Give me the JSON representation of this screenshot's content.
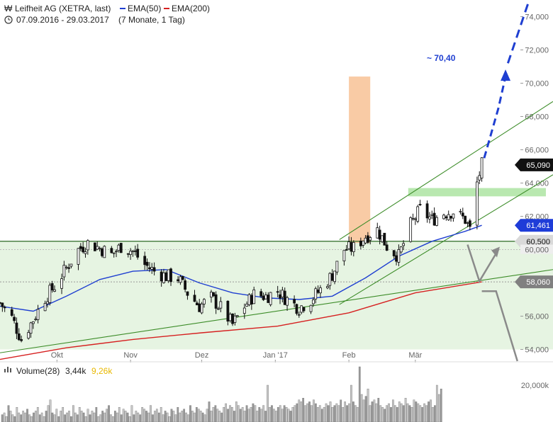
{
  "header": {
    "title": "Leifheit AG (XETRA, last)",
    "ema50_label": "EMA(50)",
    "ema200_label": "EMA(200)",
    "date_range": "07.09.2016 - 29.03.2017",
    "period": "(7 Monate, 1 Tag)"
  },
  "volume_panel": {
    "label": "Volume(28)",
    "value": "3,44k",
    "avg": "9,26k",
    "tick": "20,000k"
  },
  "annotations": {
    "target": "~ 70,40"
  },
  "badges": [
    {
      "label": "65,090",
      "value": 65.09,
      "color": "#111111"
    },
    {
      "label": "61,461",
      "value": 61.461,
      "color": "#1e3cd8"
    },
    {
      "label": "60,500",
      "value": 60.5,
      "color": "#d9d9d9"
    },
    {
      "label": "58,060",
      "value": 58.06,
      "color": "#808080"
    }
  ],
  "colors": {
    "ema50": "#1f3fd1",
    "ema200": "#d62020",
    "trend": "#3c8c28",
    "target": "#1f3fd1",
    "orange_box": "#f9cba5",
    "green_box": "#b9e8b0",
    "zone": "#e6f4e2"
  },
  "chart_data": {
    "type": "candlestick",
    "title": "Leifheit AG (XETRA, last)",
    "y_ticks": [
      "74,000",
      "72,000",
      "70,000",
      "68,000",
      "66,000",
      "64,000",
      "62,000",
      "60,000",
      "58,000",
      "56,000",
      "54,000"
    ],
    "y_tick_values": [
      74,
      72,
      70,
      68,
      66,
      64,
      62,
      60,
      58,
      56,
      54
    ],
    "x_ticks": [
      "Okt",
      "Nov",
      "Dez",
      "Jan '17",
      "Feb",
      "Mär"
    ],
    "x_tick_dates": [
      "2016-10-01",
      "2016-11-01",
      "2016-12-01",
      "2017-01-01",
      "2017-02-01",
      "2017-03-01"
    ],
    "ylim": [
      53.3,
      75.0
    ],
    "xlim": [
      "2016-09-07",
      "2017-04-28"
    ],
    "close_path": [
      [
        "2016-09-07",
        56.8
      ],
      [
        "2016-09-12",
        55.9
      ],
      [
        "2016-09-16",
        54.6
      ],
      [
        "2016-09-21",
        55.8
      ],
      [
        "2016-09-26",
        57.1
      ],
      [
        "2016-09-30",
        57.8
      ],
      [
        "2016-10-05",
        58.9
      ],
      [
        "2016-10-10",
        60.0
      ],
      [
        "2016-10-14",
        60.4
      ],
      [
        "2016-10-19",
        60.1
      ],
      [
        "2016-10-24",
        59.7
      ],
      [
        "2016-10-28",
        60.2
      ],
      [
        "2016-11-02",
        59.9
      ],
      [
        "2016-11-07",
        59.1
      ],
      [
        "2016-11-11",
        58.7
      ],
      [
        "2016-11-16",
        58.4
      ],
      [
        "2016-11-21",
        58.3
      ],
      [
        "2016-11-25",
        57.4
      ],
      [
        "2016-11-30",
        56.6
      ],
      [
        "2016-12-05",
        57.1
      ],
      [
        "2016-12-09",
        56.5
      ],
      [
        "2016-12-14",
        55.5
      ],
      [
        "2016-12-19",
        56.6
      ],
      [
        "2016-12-23",
        57.3
      ],
      [
        "2016-12-28",
        57.2
      ],
      [
        "2017-01-02",
        57.5
      ],
      [
        "2017-01-06",
        57.0
      ],
      [
        "2017-01-11",
        56.5
      ],
      [
        "2017-01-16",
        57.0
      ],
      [
        "2017-01-20",
        57.6
      ],
      [
        "2017-01-25",
        58.5
      ],
      [
        "2017-01-30",
        60.0
      ],
      [
        "2017-02-03",
        60.1
      ],
      [
        "2017-02-08",
        60.8
      ],
      [
        "2017-02-13",
        61.2
      ],
      [
        "2017-02-17",
        60.2
      ],
      [
        "2017-02-22",
        59.6
      ],
      [
        "2017-02-27",
        61.5
      ],
      [
        "2017-03-03",
        62.4
      ],
      [
        "2017-03-08",
        61.8
      ],
      [
        "2017-03-13",
        62.2
      ],
      [
        "2017-03-17",
        62.3
      ],
      [
        "2017-03-22",
        61.8
      ],
      [
        "2017-03-24",
        61.2
      ],
      [
        "2017-03-27",
        64.0
      ],
      [
        "2017-03-29",
        65.09
      ]
    ],
    "ema50": [
      [
        "2016-09-07",
        56.6
      ],
      [
        "2016-09-21",
        56.3
      ],
      [
        "2016-10-05",
        57.2
      ],
      [
        "2016-10-19",
        58.2
      ],
      [
        "2016-11-02",
        58.7
      ],
      [
        "2016-11-16",
        58.8
      ],
      [
        "2016-11-30",
        58.0
      ],
      [
        "2016-12-14",
        57.4
      ],
      [
        "2016-12-28",
        57.1
      ],
      [
        "2017-01-11",
        57.0
      ],
      [
        "2017-01-25",
        57.2
      ],
      [
        "2017-02-08",
        58.3
      ],
      [
        "2017-02-22",
        59.6
      ],
      [
        "2017-03-08",
        60.5
      ],
      [
        "2017-03-22",
        61.1
      ],
      [
        "2017-03-29",
        61.461
      ]
    ],
    "ema200": [
      [
        "2016-09-07",
        53.4
      ],
      [
        "2016-10-05",
        54.1
      ],
      [
        "2016-11-02",
        54.6
      ],
      [
        "2016-12-01",
        55.0
      ],
      [
        "2017-01-02",
        55.4
      ],
      [
        "2017-02-01",
        56.2
      ],
      [
        "2017-03-01",
        57.4
      ],
      [
        "2017-03-29",
        58.06
      ]
    ],
    "trendlines": [
      {
        "from": [
          "2016-09-07",
          53.8
        ],
        "to": [
          "2017-04-28",
          58.8
        ]
      },
      {
        "from": [
          "2017-01-28",
          56.7
        ],
        "to": [
          "2017-04-28",
          64.5
        ]
      },
      {
        "from": [
          "2017-01-28",
          60.6
        ],
        "to": [
          "2017-04-28",
          68.9
        ]
      }
    ],
    "horizontal_lines": [
      60.5,
      60.0,
      58.06
    ],
    "zone_y": [
      54.0,
      60.5
    ],
    "orange_box": {
      "x": [
        "2017-02-01",
        "2017-02-10"
      ],
      "y": [
        60.4,
        70.4
      ]
    },
    "green_box": {
      "x": [
        "2017-02-26",
        "2017-04-25"
      ],
      "y": [
        63.2,
        63.7
      ]
    },
    "target_path": [
      [
        "2017-03-30",
        65.5
      ],
      [
        "2017-04-05",
        68.5
      ],
      [
        "2017-04-08",
        70.4
      ]
    ],
    "target_path2": [
      [
        "2017-04-09",
        71.2
      ],
      [
        "2017-04-18",
        75.0
      ]
    ],
    "grey_path": [
      [
        "2017-03-23",
        60.3
      ],
      [
        "2017-03-28",
        58.1
      ],
      [
        "2017-04-05",
        60.0
      ]
    ],
    "grey_path2": [
      [
        "2017-03-29",
        57.5
      ],
      [
        "2017-04-04",
        57.5
      ],
      [
        "2017-04-13",
        53.3
      ]
    ],
    "volume": {
      "label": "Volume(28)",
      "ylim": [
        0,
        30
      ],
      "ticks": [
        "20,000k"
      ],
      "tick_values": [
        20
      ],
      "values": [
        4,
        5,
        3,
        9,
        6,
        4,
        3,
        8,
        5,
        4,
        6,
        5,
        7,
        4,
        3,
        5,
        6,
        8,
        4,
        5,
        3,
        6,
        9,
        12,
        5,
        4,
        7,
        3,
        6,
        8,
        4,
        5,
        6,
        3,
        9,
        5,
        4,
        8,
        6,
        5,
        3,
        7,
        4,
        6,
        5,
        8,
        3,
        4,
        6,
        5,
        7,
        9,
        4,
        3,
        6,
        5,
        8,
        4,
        7,
        6,
        5,
        3,
        9,
        4,
        6,
        5,
        4,
        8,
        7,
        6,
        5,
        9,
        4,
        6,
        7,
        5,
        8,
        4,
        6,
        5,
        3,
        7,
        6,
        4,
        8,
        5,
        6,
        7,
        5,
        4,
        9,
        6,
        5,
        8,
        7,
        6,
        5,
        4,
        7,
        11,
        6,
        8,
        9,
        7,
        6,
        5,
        8,
        10,
        7,
        9,
        8,
        6,
        11,
        9,
        7,
        8,
        6,
        9,
        7,
        8,
        10,
        9,
        6,
        8,
        7,
        9,
        6,
        20,
        8,
        9,
        7,
        6,
        8,
        9,
        7,
        9,
        8,
        7,
        6,
        8,
        9,
        10,
        12,
        11,
        13,
        9,
        10,
        11,
        9,
        12,
        10,
        8,
        9,
        7,
        8,
        10,
        9,
        11,
        8,
        9,
        10,
        9,
        12,
        8,
        11,
        9,
        10,
        20,
        11,
        9,
        8,
        30,
        15,
        12,
        14,
        18,
        9,
        11,
        12,
        10,
        13,
        9,
        8,
        7,
        9,
        10,
        8,
        12,
        9,
        8,
        11,
        10,
        9,
        13,
        10,
        9,
        8,
        12,
        11,
        10,
        9,
        8,
        10,
        9,
        11,
        12,
        8,
        9,
        20,
        15,
        18
      ]
    }
  }
}
